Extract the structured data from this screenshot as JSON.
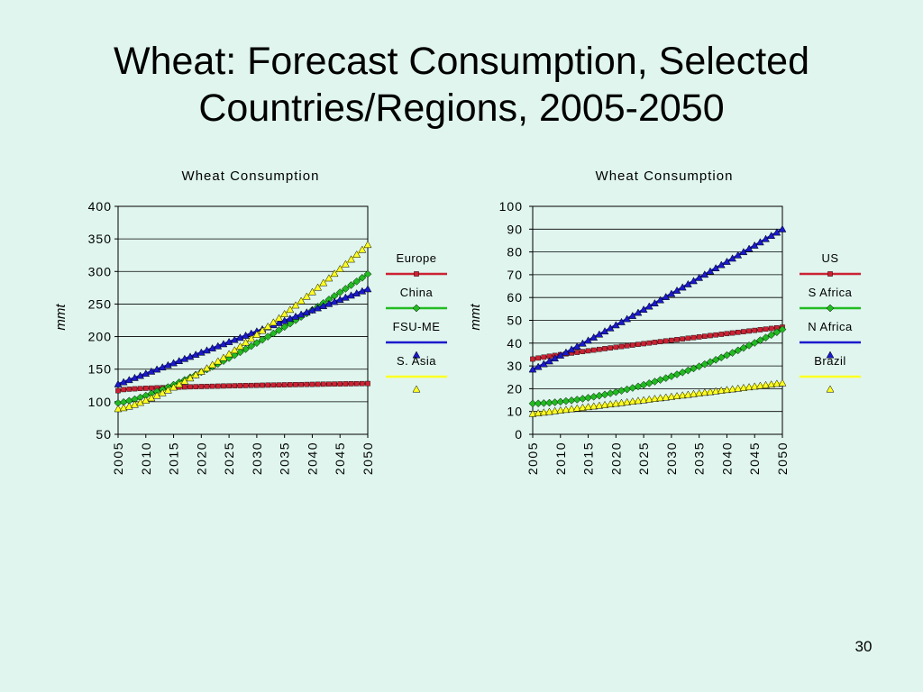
{
  "slide": {
    "title_line1": "Wheat:  Forecast Consumption, Selected",
    "title_line2": "Countries/Regions, 2005-2050",
    "page_number": "30"
  },
  "chart_data": [
    {
      "type": "line",
      "title": "Wheat Consumption",
      "ylabel": "mmt",
      "xlabel": "",
      "ylim": [
        50,
        400
      ],
      "yticks": [
        50,
        100,
        150,
        200,
        250,
        300,
        350,
        400
      ],
      "xlim": [
        2005,
        2050
      ],
      "xticks": [
        2005,
        2010,
        2015,
        2020,
        2025,
        2030,
        2035,
        2040,
        2045,
        2050
      ],
      "grid": true,
      "legend_position": "right",
      "series": [
        {
          "name": "Europe",
          "color": "#cc2233",
          "marker": "square",
          "start": 117,
          "end": 128,
          "curve": 0.5
        },
        {
          "name": "China",
          "color": "#22bb22",
          "marker": "diamond",
          "start": 98,
          "end": 296,
          "curve": 1.3
        },
        {
          "name": "FSU-ME",
          "color": "#1a1acc",
          "marker": "triangle",
          "start": 127,
          "end": 273,
          "curve": 1.0
        },
        {
          "name": "S. Asia",
          "color": "#ffff22",
          "marker": "triangle",
          "start": 89,
          "end": 341,
          "curve": 1.35
        }
      ]
    },
    {
      "type": "line",
      "title": "Wheat Consumption",
      "ylabel": "mmt",
      "xlabel": "",
      "ylim": [
        0,
        100
      ],
      "yticks": [
        0,
        10,
        20,
        30,
        40,
        50,
        60,
        70,
        80,
        90,
        100
      ],
      "xlim": [
        2005,
        2050
      ],
      "xticks": [
        2005,
        2010,
        2015,
        2020,
        2025,
        2030,
        2035,
        2040,
        2045,
        2050
      ],
      "grid": true,
      "legend_position": "right",
      "series": [
        {
          "name": "US",
          "color": "#cc2233",
          "marker": "square",
          "start": 33,
          "end": 47,
          "curve": 0.9
        },
        {
          "name": "S Africa",
          "color": "#22bb22",
          "marker": "diamond",
          "start": 13.5,
          "end": 46,
          "curve": 1.7
        },
        {
          "name": "N Africa",
          "color": "#1a1acc",
          "marker": "triangle",
          "start": 28.5,
          "end": 90,
          "curve": 1.05
        },
        {
          "name": "Brazil",
          "color": "#ffff22",
          "marker": "triangle",
          "start": 9,
          "end": 22.5,
          "curve": 1.0
        }
      ]
    }
  ]
}
